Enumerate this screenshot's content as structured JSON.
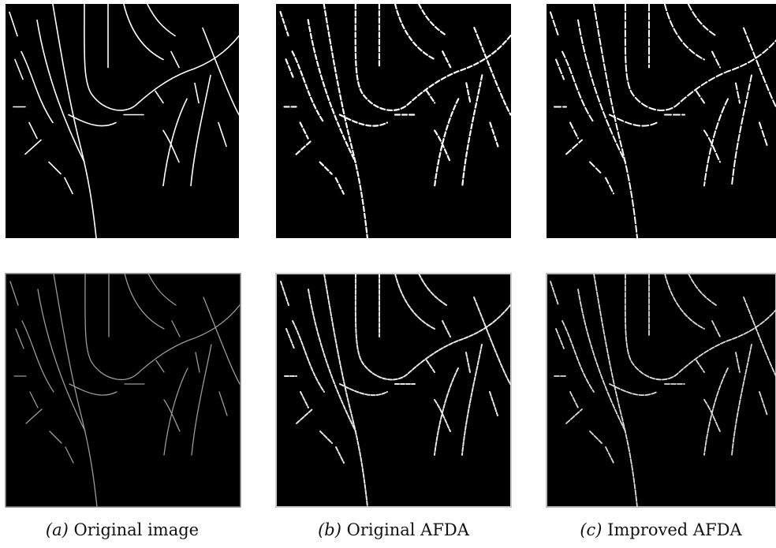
{
  "figure": {
    "panels": [
      {
        "label": "(a)",
        "caption": "Original image"
      },
      {
        "label": "(b)",
        "caption": "Original AFDA"
      },
      {
        "label": "(c)",
        "caption": "Improved AFDA"
      }
    ]
  }
}
